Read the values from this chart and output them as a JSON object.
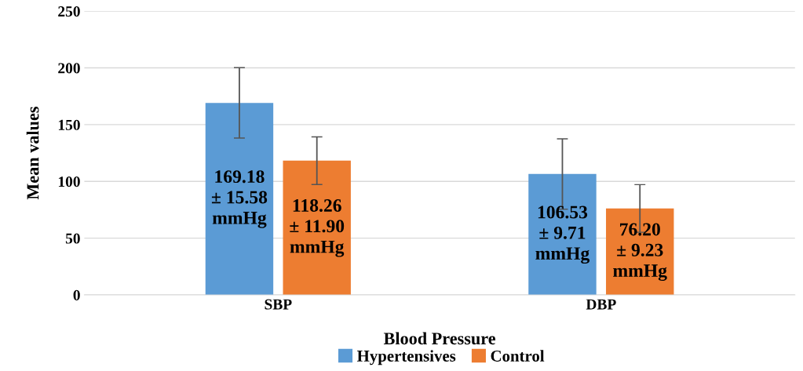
{
  "chart_data": {
    "type": "bar",
    "xlabel": "Blood Pressure",
    "ylabel": "Mean values",
    "categories": [
      "SBP",
      "DBP"
    ],
    "series": [
      {
        "name": "Hypertensives",
        "color": "#5b9bd5",
        "values": [
          169.18,
          106.53
        ],
        "errors": [
          31,
          31
        ],
        "value_labels": [
          "169.18\n± 15.58\nmmHg",
          "106.53\n± 9.71\nmmHg"
        ]
      },
      {
        "name": "Control",
        "color": "#ed7d31",
        "values": [
          118.26,
          76.2
        ],
        "errors": [
          21,
          21
        ],
        "value_labels": [
          "118.26\n± 11.90\nmmHg",
          "76.20\n± 9.23\nmmHg"
        ]
      }
    ],
    "ylim": [
      0,
      250
    ],
    "yticks": [
      0,
      50,
      100,
      150,
      200,
      250
    ],
    "grid": "y",
    "legend": "bottom"
  }
}
